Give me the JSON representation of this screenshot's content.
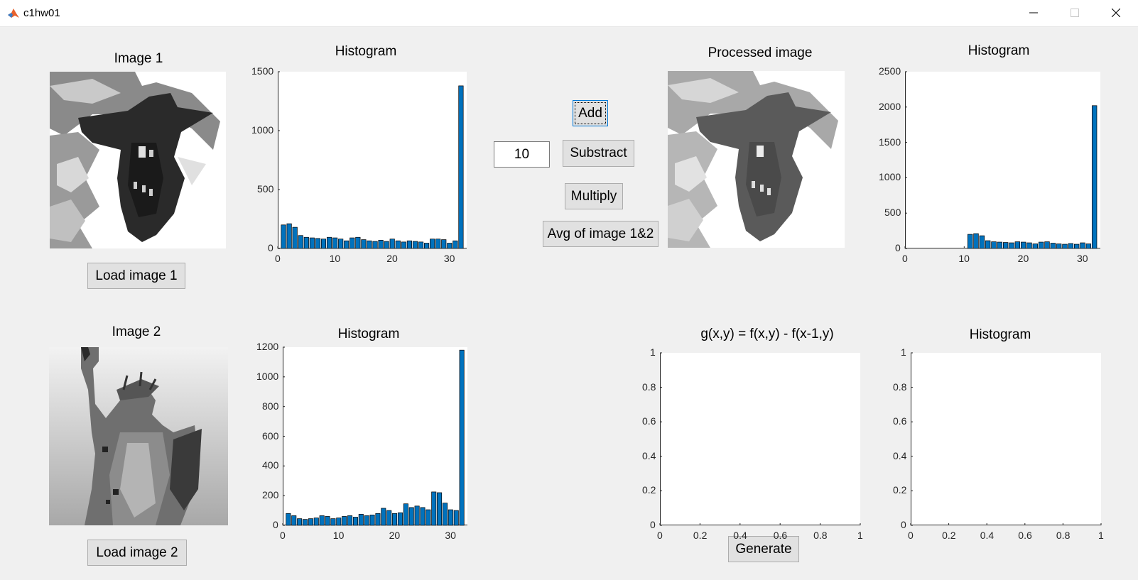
{
  "window": {
    "title": "c1hw01"
  },
  "titlebar_buttons": {
    "minimize": "─",
    "maximize": "□",
    "close": "✕"
  },
  "image1": {
    "title": "Image 1",
    "load_button": "Load image 1"
  },
  "image2": {
    "title": "Image 2",
    "load_button": "Load image 2"
  },
  "processed": {
    "title": "Processed image"
  },
  "operations": {
    "value": "10",
    "add": "Add",
    "subtract": "Substract",
    "multiply": "Multiply",
    "average": "Avg of image 1&2"
  },
  "gradient": {
    "title": "g(x,y) = f(x,y) - f(x-1,y)",
    "generate_button": "Generate"
  },
  "colors": {
    "bar": "#0072bd",
    "axes": "#262626",
    "panel": "#f0f0f0"
  },
  "chart_data": [
    {
      "id": "hist1",
      "type": "bar",
      "title": "Histogram",
      "xlim": [
        0,
        33
      ],
      "ylim": [
        0,
        1500
      ],
      "xticks": [
        "0",
        "10",
        "20",
        "30"
      ],
      "xtick_values": [
        0,
        10,
        20,
        30
      ],
      "yticks": [
        "0",
        "500",
        "1000",
        "1500"
      ],
      "ytick_values": [
        0,
        500,
        1000,
        1500
      ],
      "x": [
        1,
        2,
        3,
        4,
        5,
        6,
        7,
        8,
        9,
        10,
        11,
        12,
        13,
        14,
        15,
        16,
        17,
        18,
        19,
        20,
        21,
        22,
        23,
        24,
        25,
        26,
        27,
        28,
        29,
        30,
        31,
        32
      ],
      "values": [
        200,
        210,
        180,
        110,
        95,
        90,
        85,
        80,
        95,
        90,
        80,
        65,
        90,
        95,
        75,
        65,
        60,
        70,
        60,
        80,
        65,
        55,
        65,
        60,
        55,
        45,
        80,
        80,
        75,
        45,
        65,
        1380
      ]
    },
    {
      "id": "hist2",
      "type": "bar",
      "title": "Histogram",
      "xlim": [
        0,
        33
      ],
      "ylim": [
        0,
        1200
      ],
      "xticks": [
        "0",
        "10",
        "20",
        "30"
      ],
      "xtick_values": [
        0,
        10,
        20,
        30
      ],
      "yticks": [
        "0",
        "200",
        "400",
        "600",
        "800",
        "1000",
        "1200"
      ],
      "ytick_values": [
        0,
        200,
        400,
        600,
        800,
        1000,
        1200
      ],
      "x": [
        1,
        2,
        3,
        4,
        5,
        6,
        7,
        8,
        9,
        10,
        11,
        12,
        13,
        14,
        15,
        16,
        17,
        18,
        19,
        20,
        21,
        22,
        23,
        24,
        25,
        26,
        27,
        28,
        29,
        30,
        31,
        32
      ],
      "values": [
        80,
        65,
        45,
        40,
        45,
        50,
        65,
        60,
        45,
        50,
        60,
        65,
        55,
        75,
        65,
        70,
        80,
        115,
        100,
        80,
        85,
        145,
        120,
        130,
        120,
        105,
        225,
        220,
        150,
        105,
        100,
        1180
      ]
    },
    {
      "id": "hist3",
      "type": "bar",
      "title": "Histogram",
      "xlim": [
        0,
        33
      ],
      "ylim": [
        0,
        2500
      ],
      "xticks": [
        "0",
        "10",
        "20",
        "30"
      ],
      "xtick_values": [
        0,
        10,
        20,
        30
      ],
      "yticks": [
        "0",
        "500",
        "1000",
        "1500",
        "2000",
        "2500"
      ],
      "ytick_values": [
        0,
        500,
        1000,
        1500,
        2000,
        2500
      ],
      "x": [
        11,
        12,
        13,
        14,
        15,
        16,
        17,
        18,
        19,
        20,
        21,
        22,
        23,
        24,
        25,
        26,
        27,
        28,
        29,
        30,
        31,
        32
      ],
      "values": [
        200,
        210,
        180,
        110,
        95,
        90,
        85,
        80,
        95,
        90,
        80,
        65,
        90,
        95,
        75,
        65,
        60,
        70,
        60,
        80,
        65,
        2020
      ]
    },
    {
      "id": "gradient_axes",
      "type": "line",
      "title": "g(x,y) = f(x,y) - f(x-1,y)",
      "xlim": [
        0,
        1
      ],
      "ylim": [
        0,
        1
      ],
      "xticks": [
        "0",
        "0.2",
        "0.4",
        "0.6",
        "0.8",
        "1"
      ],
      "xtick_values": [
        0,
        0.2,
        0.4,
        0.6,
        0.8,
        1
      ],
      "yticks": [
        "0",
        "0.2",
        "0.4",
        "0.6",
        "0.8",
        "1"
      ],
      "ytick_values": [
        0,
        0.2,
        0.4,
        0.6,
        0.8,
        1
      ],
      "series": []
    },
    {
      "id": "hist4",
      "type": "bar",
      "title": "Histogram",
      "xlim": [
        0,
        1
      ],
      "ylim": [
        0,
        1
      ],
      "xticks": [
        "0",
        "0.2",
        "0.4",
        "0.6",
        "0.8",
        "1"
      ],
      "xtick_values": [
        0,
        0.2,
        0.4,
        0.6,
        0.8,
        1
      ],
      "yticks": [
        "0",
        "0.2",
        "0.4",
        "0.6",
        "0.8",
        "1"
      ],
      "ytick_values": [
        0,
        0.2,
        0.4,
        0.6,
        0.8,
        1
      ],
      "x": [],
      "values": []
    }
  ]
}
